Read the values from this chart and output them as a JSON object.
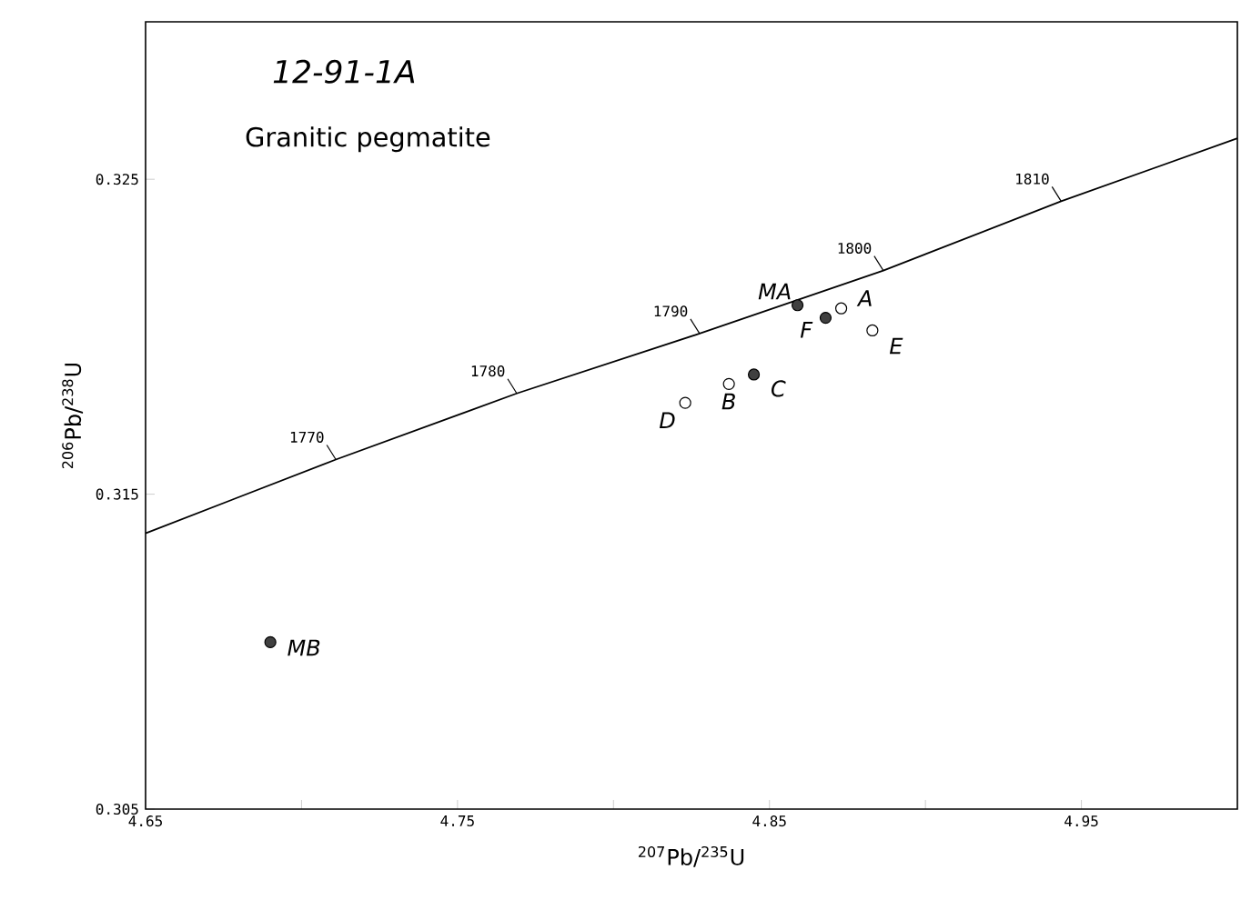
{
  "chart_data": {
    "type": "scatter",
    "title": "12-91-1A",
    "subtitle": "Granitic pegmatite",
    "xlabel": "$^{207}$Pb/$^{235}$U",
    "ylabel": "$^{206}$Pb/$^{238}$U",
    "xlim": [
      4.65,
      5.0
    ],
    "ylim": [
      0.305,
      0.33
    ],
    "xticks": [
      4.65,
      {
        "value": 4.7,
        "label": null
      },
      4.75,
      {
        "value": 4.8,
        "label": null
      },
      4.85,
      {
        "value": 4.9,
        "label": null
      },
      4.95
    ],
    "yticks": [
      0.305,
      0.315,
      0.325
    ],
    "grid": false,
    "series": [
      {
        "marker": "circle",
        "color": "#404040",
        "x": [
          4.859,
          4.868,
          4.845,
          4.69
        ],
        "values": [
          0.321,
          0.3206,
          0.3188,
          0.3103
        ]
      },
      {
        "marker": "circle",
        "color": "#ffffff",
        "x": [
          4.873,
          4.883,
          4.837,
          4.823
        ],
        "values": [
          0.3209,
          0.3202,
          0.3185,
          0.3179
        ]
      },
      {
        "type": "line",
        "marker": "none",
        "color": "#000000",
        "x": [
          4.65,
          4.711,
          4.769,
          4.8276,
          4.8865,
          4.9435,
          5.0
        ],
        "values": [
          0.31376,
          0.3161,
          0.3182,
          0.3201,
          0.3221,
          0.3243,
          0.3263
        ]
      }
    ],
    "annotations": [
      {
        "text": "MA",
        "x": 4.859,
        "y": 0.321
      },
      {
        "text": "A",
        "x": 4.873,
        "y": 0.3209
      },
      {
        "text": "F",
        "x": 4.868,
        "y": 0.3206
      },
      {
        "text": "E",
        "x": 4.883,
        "y": 0.3202
      },
      {
        "text": "C",
        "x": 4.845,
        "y": 0.3188
      },
      {
        "text": "B",
        "x": 4.837,
        "y": 0.3185
      },
      {
        "text": "D",
        "x": 4.823,
        "y": 0.3179
      },
      {
        "text": "MB",
        "x": 4.69,
        "y": 0.3103
      },
      {
        "text": "1770",
        "x": 4.711,
        "y": 0.3161
      },
      {
        "text": "1780",
        "x": 4.769,
        "y": 0.3182
      },
      {
        "text": "1790",
        "x": 4.8276,
        "y": 0.3201
      },
      {
        "text": "1800",
        "x": 4.8865,
        "y": 0.3221
      },
      {
        "text": "1810",
        "x": 4.9435,
        "y": 0.3243
      }
    ]
  }
}
